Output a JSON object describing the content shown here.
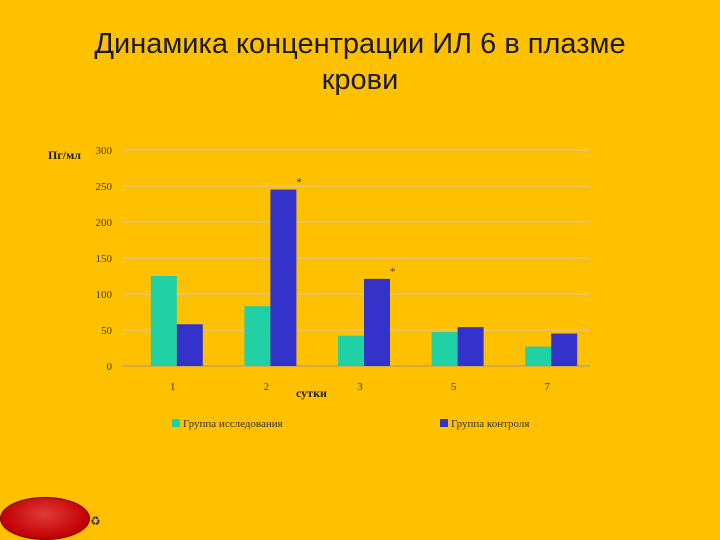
{
  "slide": {
    "title_line1": "Динамика концентрации ИЛ 6 в плазме",
    "title_line2": "крови"
  },
  "nav_glyph": "♻",
  "chart_data": {
    "type": "bar",
    "categories": [
      "1",
      "2",
      "3",
      "5",
      "7"
    ],
    "series": [
      {
        "name": "Группа исследования",
        "values": [
          125,
          83,
          42,
          47,
          27
        ],
        "color": "#1FD1A5"
      },
      {
        "name": "Группа контроля",
        "values": [
          58,
          245,
          121,
          54,
          45
        ],
        "color": "#3333CC"
      }
    ],
    "ylabel": "Пг/мл",
    "xlabel": "сутки",
    "ylim": [
      0,
      300
    ],
    "yticks": [
      0,
      50,
      100,
      150,
      200,
      250,
      300
    ],
    "grid": true,
    "legend_position": "bottom",
    "annotations": [
      {
        "text": "*",
        "category": "2",
        "series": 1
      },
      {
        "text": "*",
        "category": "3",
        "series": 1
      }
    ]
  }
}
